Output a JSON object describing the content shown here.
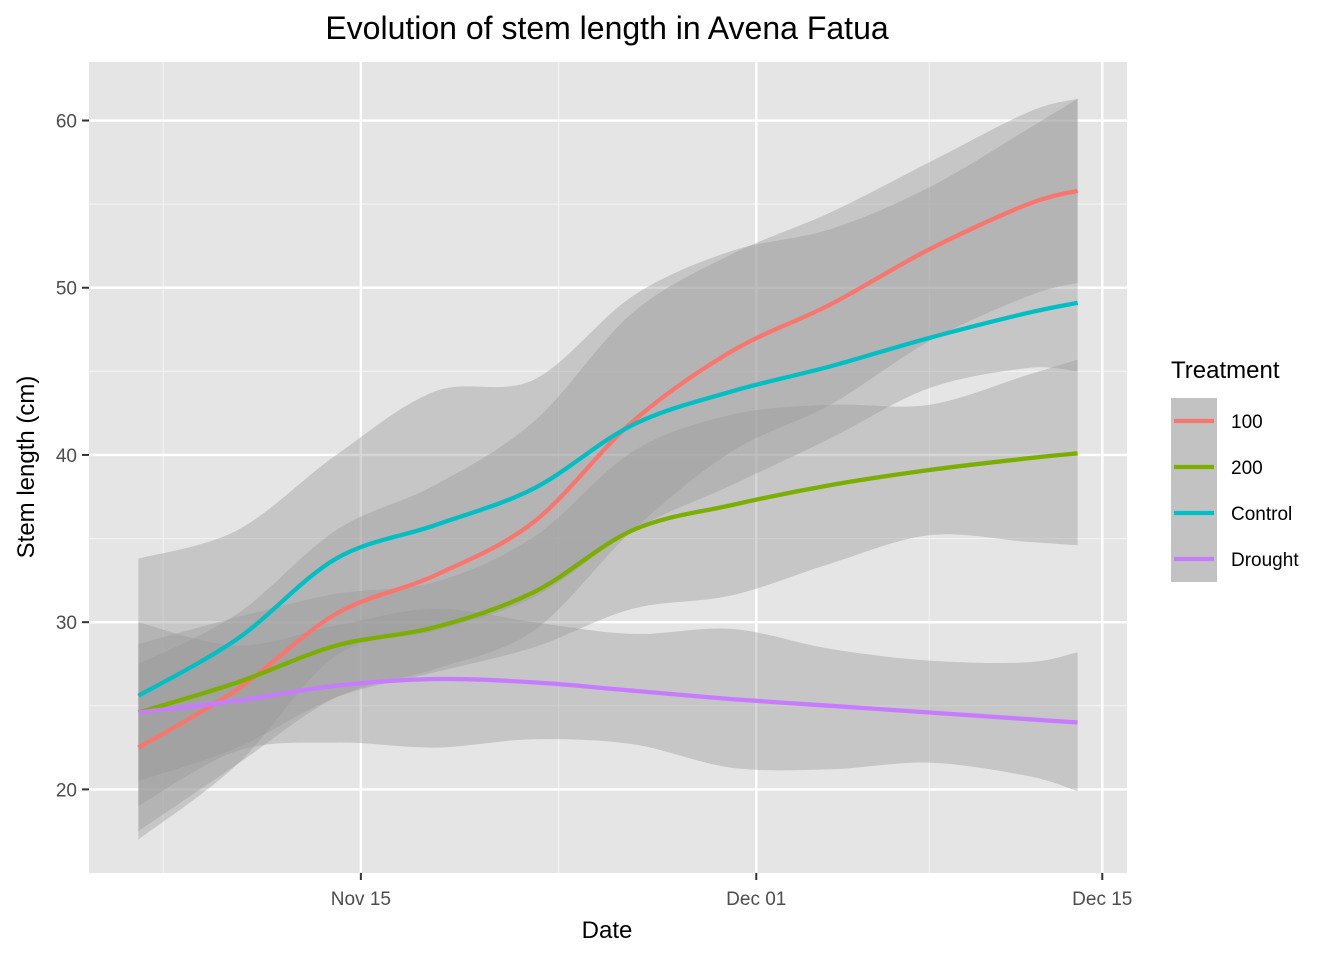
{
  "chart_data": {
    "type": "line",
    "title": "Evolution of stem length in Avena Fatua",
    "xlabel": "Date",
    "ylabel": "Stem length (cm)",
    "x_is_date": true,
    "xlim": [
      "2023-11-04",
      "2023-12-16"
    ],
    "ylim": [
      15,
      63.5
    ],
    "x_ticks": [
      {
        "date": "2023-11-15",
        "label": "Nov 15"
      },
      {
        "date": "2023-12-01",
        "label": "Dec 01"
      },
      {
        "date": "2023-12-15",
        "label": "Dec 15"
      }
    ],
    "x_minor_ticks": [
      "2023-11-07",
      "2023-11-23",
      "2023-12-08"
    ],
    "y_ticks": [
      20,
      30,
      40,
      50,
      60
    ],
    "y_minor_ticks": [
      25,
      35,
      45,
      55
    ],
    "grid": true,
    "legend": {
      "title": "Treatment",
      "position": "right"
    },
    "series": [
      {
        "name": "100",
        "color": "#F8766D",
        "x": [
          "2023-11-06",
          "2023-11-10",
          "2023-11-14",
          "2023-11-18",
          "2023-11-22",
          "2023-11-26",
          "2023-11-30",
          "2023-12-04",
          "2023-12-08",
          "2023-12-12",
          "2023-12-14"
        ],
        "y": [
          22.5,
          26.0,
          30.5,
          32.8,
          36.0,
          42.0,
          46.2,
          49.0,
          52.3,
          55.0,
          55.8
        ],
        "lower": [
          17.5,
          21.5,
          25.5,
          27.2,
          29.5,
          35.5,
          40.2,
          43.0,
          46.8,
          49.5,
          50.3
        ],
        "upper": [
          27.5,
          30.5,
          35.5,
          38.2,
          42.0,
          48.5,
          52.0,
          54.5,
          57.5,
          60.5,
          61.3
        ]
      },
      {
        "name": "200",
        "color": "#7CAE00",
        "x": [
          "2023-11-06",
          "2023-11-10",
          "2023-11-14",
          "2023-11-18",
          "2023-11-22",
          "2023-11-26",
          "2023-11-30",
          "2023-12-04",
          "2023-12-08",
          "2023-12-12",
          "2023-12-14"
        ],
        "y": [
          24.6,
          26.4,
          28.6,
          29.7,
          31.8,
          35.5,
          37.0,
          38.2,
          39.1,
          39.8,
          40.1
        ],
        "lower": [
          20.5,
          22.5,
          25.5,
          27.0,
          28.5,
          30.8,
          31.6,
          33.5,
          35.2,
          34.8,
          34.6
        ],
        "upper": [
          28.7,
          30.3,
          31.7,
          32.4,
          35.1,
          40.2,
          42.4,
          43.0,
          43.0,
          44.8,
          45.7
        ]
      },
      {
        "name": "Control",
        "color": "#00BFC4",
        "x": [
          "2023-11-06",
          "2023-11-10",
          "2023-11-14",
          "2023-11-18",
          "2023-11-22",
          "2023-11-26",
          "2023-11-30",
          "2023-12-04",
          "2023-12-08",
          "2023-12-12",
          "2023-12-14"
        ],
        "y": [
          25.6,
          29.0,
          33.8,
          35.8,
          38.0,
          41.8,
          43.8,
          45.3,
          47.0,
          48.5,
          49.1
        ],
        "lower": [
          17.0,
          21.5,
          28.0,
          29.5,
          31.5,
          35.5,
          38.2,
          41.0,
          44.0,
          45.2,
          45.0
        ],
        "upper": [
          33.8,
          35.5,
          40.0,
          43.8,
          44.5,
          49.5,
          52.2,
          53.5,
          56.0,
          59.5,
          61.3
        ]
      },
      {
        "name": "Drought",
        "color": "#C77CFF",
        "x": [
          "2023-11-06",
          "2023-11-10",
          "2023-11-14",
          "2023-11-18",
          "2023-11-22",
          "2023-11-26",
          "2023-11-30",
          "2023-12-04",
          "2023-12-08",
          "2023-12-12",
          "2023-12-14"
        ],
        "y": [
          24.6,
          25.3,
          26.2,
          26.6,
          26.4,
          25.9,
          25.4,
          25.0,
          24.6,
          24.2,
          24.0
        ],
        "lower": [
          19.0,
          22.3,
          22.8,
          22.5,
          23.0,
          22.7,
          21.3,
          21.2,
          21.6,
          20.8,
          19.9
        ],
        "upper": [
          30.0,
          28.6,
          29.8,
          30.8,
          30.0,
          29.3,
          29.6,
          28.4,
          27.7,
          27.6,
          28.2
        ]
      }
    ]
  }
}
